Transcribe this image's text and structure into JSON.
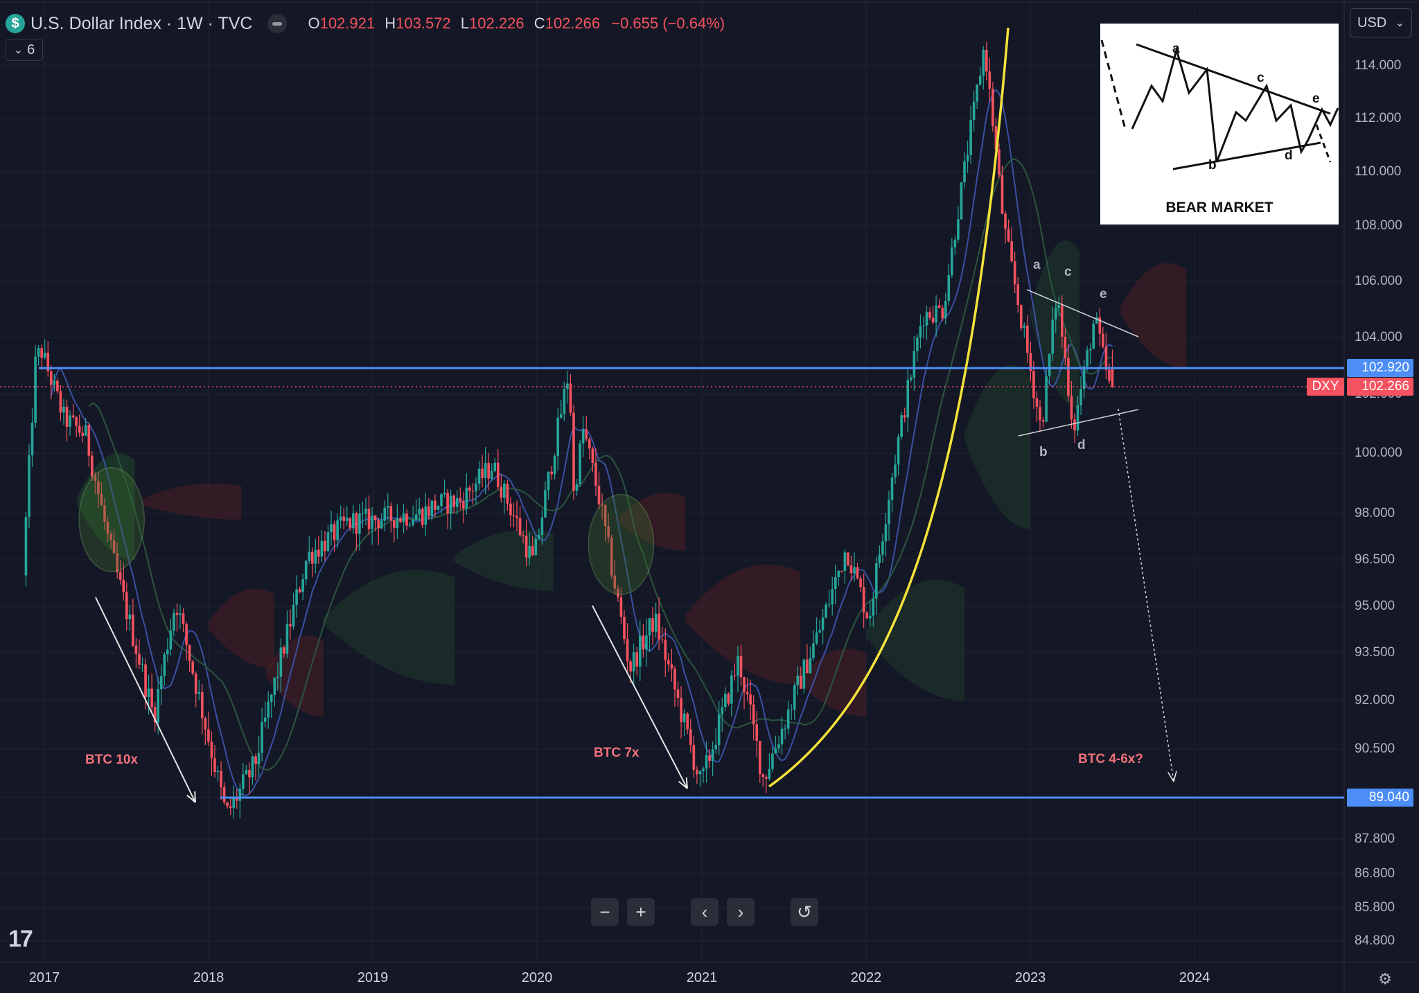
{
  "header": {
    "symbol_icon": "$",
    "title": "U.S. Dollar Index · 1W · TVC",
    "ohlc": {
      "o_label": "O",
      "o": "102.921",
      "h_label": "H",
      "h": "103.572",
      "l_label": "L",
      "l": "102.226",
      "c_label": "C",
      "c": "102.266",
      "change": "−0.655 (−0.64%)"
    },
    "indicators_count": "6",
    "currency": "USD"
  },
  "chart_data": {
    "type": "candlestick",
    "timeframe": "1W",
    "x_ticks": [
      "2017",
      "2018",
      "2019",
      "2020",
      "2021",
      "2022",
      "2023",
      "2024"
    ],
    "price_ticks": [
      "114.000",
      "112.000",
      "110.000",
      "108.000",
      "106.000",
      "104.000",
      "102.000",
      "100.000",
      "98.000",
      "96.500",
      "95.000",
      "93.500",
      "92.000",
      "90.500",
      "89.040",
      "87.800",
      "86.800",
      "85.800",
      "84.800"
    ],
    "horizontal_levels": [
      {
        "value": 102.92,
        "label": "102.920",
        "color": "#4c8df6"
      },
      {
        "value": 89.04,
        "label": "89.040",
        "color": "#4c8df6"
      }
    ],
    "last_price": {
      "value": 102.266,
      "symbol": "DXY",
      "label": "102.266",
      "color": "#f7525f"
    },
    "path_points": [
      [
        "2016-11-21",
        96.0
      ],
      [
        "2016-12-20",
        103.3
      ],
      [
        "2017-01-02",
        103.5
      ],
      [
        "2017-02-20",
        101.2
      ],
      [
        "2017-04-10",
        100.6
      ],
      [
        "2017-06-01",
        97.0
      ],
      [
        "2017-09-08",
        91.5
      ],
      [
        "2017-10-27",
        95.2
      ],
      [
        "2018-02-16",
        88.5
      ],
      [
        "2018-04-20",
        90.0
      ],
      [
        "2018-08-15",
        96.6
      ],
      [
        "2018-11-12",
        97.7
      ],
      [
        "2019-04-26",
        98.0
      ],
      [
        "2019-05-30",
        98.3
      ],
      [
        "2019-07-20",
        98.4
      ],
      [
        "2019-10-01",
        99.6
      ],
      [
        "2019-12-31",
        96.4
      ],
      [
        "2020-03-20",
        102.9
      ],
      [
        "2020-03-28",
        98.5
      ],
      [
        "2020-04-20",
        100.8
      ],
      [
        "2020-05-25",
        98.5
      ],
      [
        "2020-08-01",
        93.0
      ],
      [
        "2020-09-25",
        94.6
      ],
      [
        "2021-01-06",
        89.4
      ],
      [
        "2021-03-31",
        93.3
      ],
      [
        "2021-05-25",
        89.6
      ],
      [
        "2021-09-28",
        94.3
      ],
      [
        "2021-11-25",
        96.9
      ],
      [
        "2022-01-14",
        94.6
      ],
      [
        "2022-03-07",
        99.3
      ],
      [
        "2022-05-13",
        104.8
      ],
      [
        "2022-06-28",
        105.0
      ],
      [
        "2022-09-28",
        114.8
      ],
      [
        "2022-11-10",
        108.0
      ],
      [
        "2023-02-01",
        100.8
      ],
      [
        "2023-03-08",
        105.6
      ],
      [
        "2023-04-14",
        100.8
      ],
      [
        "2023-05-31",
        104.7
      ],
      [
        "2023-07-03",
        102.27
      ]
    ],
    "annotations": [
      {
        "text": "BTC 10x"
      },
      {
        "text": "BTC 7x"
      },
      {
        "text": "BTC 4-6x?"
      }
    ],
    "wave_labels": [
      "a",
      "b",
      "c",
      "d",
      "e"
    ],
    "inset": {
      "title": "BEAR MARKET",
      "labels": [
        "a",
        "b",
        "c",
        "d",
        "e"
      ]
    }
  },
  "icons": {
    "zoom_out": "−",
    "zoom_in": "+",
    "scroll_left": "‹",
    "scroll_right": "›",
    "reset": "↺",
    "settings": "⚙",
    "logo": "17",
    "chevron": "⌄"
  }
}
